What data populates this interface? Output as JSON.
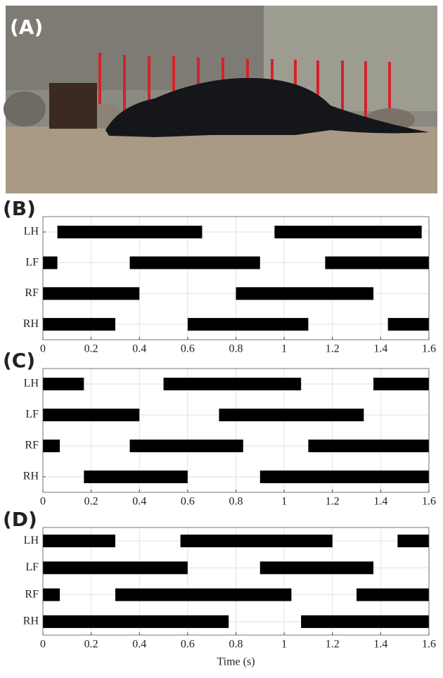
{
  "photo": {
    "label": "(A)"
  },
  "chart_data": [
    {
      "type": "gait",
      "title": "(B)",
      "categories": [
        "LH",
        "LF",
        "RF",
        "RH"
      ],
      "intervals": [
        [
          [
            0.06,
            0.66
          ],
          [
            0.96,
            1.57
          ]
        ],
        [
          [
            0,
            0.06
          ],
          [
            0.36,
            0.9
          ],
          [
            1.17,
            1.6
          ]
        ],
        [
          [
            0,
            0.4
          ],
          [
            0.8,
            1.37
          ]
        ],
        [
          [
            0,
            0.3
          ],
          [
            0.6,
            1.1
          ],
          [
            1.43,
            1.6
          ]
        ]
      ],
      "color": "#000000",
      "xlim": [
        0,
        1.6
      ],
      "xticks": [
        0,
        0.2,
        0.4,
        0.6,
        0.8,
        1,
        1.2,
        1.4,
        1.6
      ],
      "grid": true
    },
    {
      "type": "gait",
      "title": "(C)",
      "categories": [
        "LH",
        "LF",
        "RF",
        "RH"
      ],
      "intervals": [
        [
          [
            0,
            0.17
          ],
          [
            0.5,
            1.07
          ],
          [
            1.37,
            1.6
          ]
        ],
        [
          [
            0,
            0.4
          ],
          [
            0.73,
            1.33
          ]
        ],
        [
          [
            0,
            0.07
          ],
          [
            0.36,
            0.83
          ],
          [
            1.1,
            1.6
          ]
        ],
        [
          [
            0.17,
            0.6
          ],
          [
            0.9,
            1.6
          ]
        ]
      ],
      "color": "#000000",
      "xlim": [
        0,
        1.6
      ],
      "xticks": [
        0,
        0.2,
        0.4,
        0.6,
        0.8,
        1,
        1.2,
        1.4,
        1.6
      ],
      "grid": true
    },
    {
      "type": "gait",
      "title": "(D)",
      "x_label": "Time (s)",
      "categories": [
        "LH",
        "LF",
        "RF",
        "RH"
      ],
      "intervals": [
        [
          [
            0,
            0.3
          ],
          [
            0.57,
            1.2
          ],
          [
            1.47,
            1.6
          ]
        ],
        [
          [
            0,
            0.6
          ],
          [
            0.9,
            1.37
          ]
        ],
        [
          [
            0,
            0.07
          ],
          [
            0.3,
            1.03
          ],
          [
            1.3,
            1.6
          ]
        ],
        [
          [
            0,
            0.77
          ],
          [
            1.07,
            1.6
          ]
        ]
      ],
      "color": "#000000",
      "xlim": [
        0,
        1.6
      ],
      "xticks": [
        0,
        0.2,
        0.4,
        0.6,
        0.8,
        1,
        1.2,
        1.4,
        1.6
      ],
      "grid": true
    }
  ]
}
